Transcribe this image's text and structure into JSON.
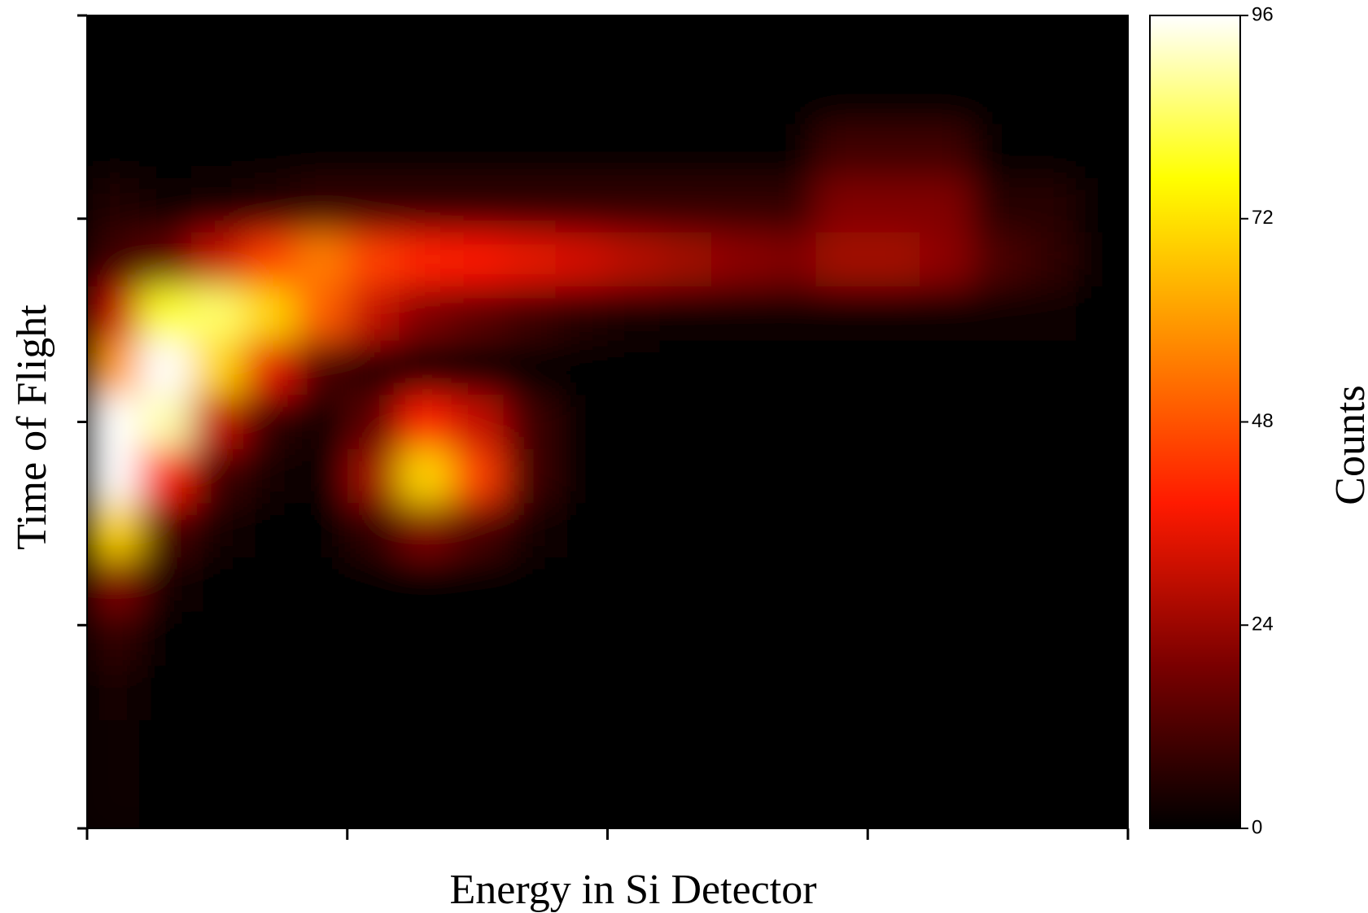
{
  "chart_data": {
    "type": "heatmap",
    "x_label": "Energy in Si Detector",
    "y_label": "Time of Flight",
    "colorbar_label": "Counts",
    "zlim": [
      0,
      96
    ],
    "zticks": [
      0,
      24,
      48,
      72,
      96
    ],
    "colormap": [
      "#000000",
      "#7a0000",
      "#ff1a00",
      "#ff8c00",
      "#ffff00",
      "#ffffff"
    ],
    "z": [
      [
        0,
        0,
        0,
        0,
        0,
        0,
        0,
        0,
        0,
        0,
        0,
        0,
        0,
        0,
        0,
        0,
        0,
        0,
        0,
        0
      ],
      [
        0,
        0,
        0,
        0,
        0,
        0,
        0,
        0,
        0,
        0,
        0,
        0,
        0,
        0,
        0,
        0,
        0,
        0,
        0,
        0
      ],
      [
        0,
        0,
        0,
        0,
        0,
        0,
        0,
        0,
        0,
        0,
        0,
        0,
        0,
        0,
        10,
        10,
        10,
        0,
        0,
        0
      ],
      [
        5,
        2,
        3,
        5,
        8,
        8,
        8,
        8,
        8,
        8,
        8,
        8,
        8,
        8,
        20,
        20,
        20,
        6,
        6,
        0
      ],
      [
        10,
        15,
        30,
        45,
        55,
        45,
        40,
        38,
        35,
        32,
        28,
        25,
        22,
        20,
        25,
        25,
        22,
        12,
        8,
        0
      ],
      [
        30,
        80,
        85,
        70,
        50,
        30,
        20,
        15,
        10,
        6,
        4,
        2,
        2,
        2,
        2,
        2,
        2,
        2,
        2,
        0
      ],
      [
        60,
        96,
        70,
        35,
        12,
        5,
        0,
        0,
        0,
        0,
        0,
        0,
        0,
        0,
        0,
        0,
        0,
        0,
        0,
        0
      ],
      [
        96,
        90,
        30,
        8,
        2,
        15,
        40,
        30,
        10,
        0,
        0,
        0,
        0,
        0,
        0,
        0,
        0,
        0,
        0,
        0
      ],
      [
        96,
        40,
        10,
        3,
        0,
        25,
        70,
        45,
        10,
        0,
        0,
        0,
        0,
        0,
        0,
        0,
        0,
        0,
        0,
        0
      ],
      [
        70,
        12,
        3,
        0,
        0,
        8,
        20,
        12,
        3,
        0,
        0,
        0,
        0,
        0,
        0,
        0,
        0,
        0,
        0,
        0
      ],
      [
        20,
        3,
        0,
        0,
        0,
        0,
        0,
        0,
        0,
        0,
        0,
        0,
        0,
        0,
        0,
        0,
        0,
        0,
        0,
        0
      ],
      [
        8,
        1,
        0,
        0,
        0,
        0,
        0,
        0,
        0,
        0,
        0,
        0,
        0,
        0,
        0,
        0,
        0,
        0,
        0,
        0
      ],
      [
        4,
        0,
        0,
        0,
        0,
        0,
        0,
        0,
        0,
        0,
        0,
        0,
        0,
        0,
        0,
        0,
        0,
        0,
        0,
        0
      ],
      [
        2,
        0,
        0,
        0,
        0,
        0,
        0,
        0,
        0,
        0,
        0,
        0,
        0,
        0,
        0,
        0,
        0,
        0,
        0,
        0
      ],
      [
        2,
        0,
        0,
        0,
        0,
        0,
        0,
        0,
        0,
        0,
        0,
        0,
        0,
        0,
        0,
        0,
        0,
        0,
        0,
        0
      ]
    ]
  }
}
